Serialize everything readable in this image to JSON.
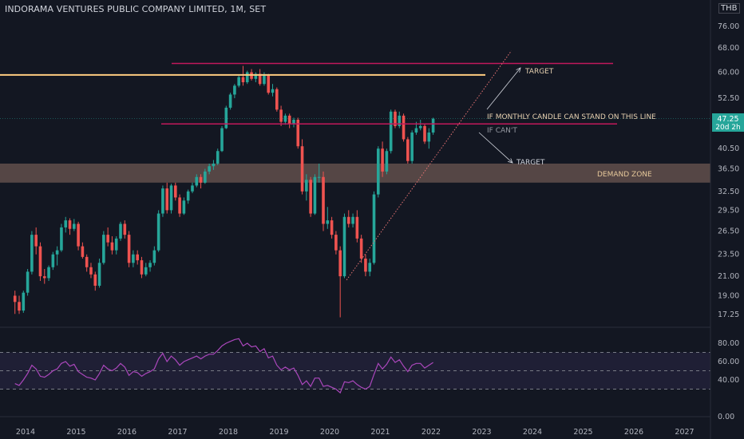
{
  "header": {
    "title": "INDORAMA VENTURES PUBLIC COMPANY LIMITED, 1M, SET",
    "currency": "THB"
  },
  "price_badge": {
    "price": "47.25",
    "countdown": "20d 2h"
  },
  "annotations": {
    "target_top": "TARGET",
    "condition": "IF MONTHLY CANDLE CAN STAND ON THIS LINE",
    "if_cant": "IF CAN'T",
    "target_bottom": "TARGET",
    "demand_zone": "DEMAND ZONE"
  },
  "colors": {
    "background": "#131722",
    "up": "#26a69a",
    "down": "#ef5350",
    "resistance_line": "#c2185b",
    "peak_line": "#ffcc80",
    "demand_zone": "#8d6e63",
    "rsi_line": "#ab47bc",
    "rsi_band": "#7e57c2"
  },
  "chart_data": {
    "type": "candlestick",
    "price_axis_ticks": [
      "76.00",
      "68.00",
      "60.00",
      "52.50",
      "47.25",
      "40.50",
      "36.50",
      "32.50",
      "29.50",
      "26.50",
      "23.50",
      "21.00",
      "19.00",
      "17.25"
    ],
    "rsi_axis_ticks": [
      "80.00",
      "60.00",
      "40.00",
      "0.00"
    ],
    "x_ticks": [
      "2014",
      "2015",
      "2016",
      "2017",
      "2018",
      "2019",
      "2020",
      "2021",
      "2022",
      "2023",
      "2024",
      "2025",
      "2026",
      "2027"
    ],
    "horizontal_lines": [
      {
        "name": "target",
        "price": 62.8
      },
      {
        "name": "peak",
        "price": 59.2
      },
      {
        "name": "breakout",
        "price": 46.0
      }
    ],
    "demand_zone": [
      34.0,
      37.5
    ],
    "trendline": {
      "from": {
        "date": "2020-05",
        "price": 20.6
      },
      "to": {
        "date": "2023-08",
        "price": 67.0
      }
    },
    "rsi_levels": [
      70,
      50,
      30
    ],
    "ohlc": [
      [
        "2013-10",
        19.0,
        19.5,
        17.3,
        18.4
      ],
      [
        "2013-11",
        18.4,
        19.0,
        17.3,
        17.6
      ],
      [
        "2013-12",
        17.6,
        19.5,
        17.4,
        19.3
      ],
      [
        "2014-01",
        19.3,
        21.8,
        19.0,
        21.5
      ],
      [
        "2014-02",
        21.5,
        26.5,
        21.2,
        26.0
      ],
      [
        "2014-03",
        26.0,
        27.0,
        23.5,
        24.5
      ],
      [
        "2014-04",
        24.5,
        25.0,
        20.5,
        21.0
      ],
      [
        "2014-05",
        21.0,
        21.8,
        20.2,
        20.8
      ],
      [
        "2014-06",
        20.8,
        22.2,
        20.5,
        22.0
      ],
      [
        "2014-07",
        22.0,
        23.8,
        21.7,
        23.5
      ],
      [
        "2014-08",
        23.5,
        24.5,
        22.2,
        24.0
      ],
      [
        "2014-09",
        24.0,
        27.5,
        23.8,
        27.0
      ],
      [
        "2014-10",
        27.0,
        28.5,
        26.3,
        28.0
      ],
      [
        "2014-11",
        28.0,
        28.3,
        26.0,
        26.8
      ],
      [
        "2014-12",
        26.8,
        28.2,
        26.5,
        27.5
      ],
      [
        "2015-01",
        27.5,
        27.8,
        24.0,
        24.5
      ],
      [
        "2015-02",
        24.5,
        25.0,
        23.0,
        23.2
      ],
      [
        "2015-03",
        23.2,
        23.5,
        21.5,
        22.0
      ],
      [
        "2015-04",
        22.0,
        22.5,
        20.8,
        21.2
      ],
      [
        "2015-05",
        21.2,
        21.5,
        19.5,
        20.0
      ],
      [
        "2015-06",
        20.0,
        23.0,
        19.8,
        22.5
      ],
      [
        "2015-07",
        22.5,
        26.5,
        22.3,
        26.0
      ],
      [
        "2015-08",
        26.0,
        27.0,
        24.5,
        25.0
      ],
      [
        "2015-09",
        25.0,
        25.8,
        23.5,
        24.0
      ],
      [
        "2015-10",
        24.0,
        25.8,
        23.5,
        25.5
      ],
      [
        "2015-11",
        25.5,
        27.8,
        25.2,
        27.5
      ],
      [
        "2015-12",
        27.5,
        28.0,
        25.5,
        26.0
      ],
      [
        "2016-01",
        26.0,
        26.5,
        22.0,
        22.5
      ],
      [
        "2016-02",
        22.5,
        24.0,
        22.0,
        23.5
      ],
      [
        "2016-03",
        23.5,
        24.0,
        22.3,
        22.8
      ],
      [
        "2016-04",
        22.8,
        23.2,
        20.8,
        21.2
      ],
      [
        "2016-05",
        21.2,
        22.5,
        21.0,
        22.0
      ],
      [
        "2016-06",
        22.0,
        22.8,
        21.5,
        22.5
      ],
      [
        "2016-07",
        22.5,
        24.5,
        22.2,
        24.0
      ],
      [
        "2016-08",
        24.0,
        29.5,
        23.8,
        29.0
      ],
      [
        "2016-09",
        29.0,
        33.5,
        28.5,
        33.0
      ],
      [
        "2016-10",
        33.0,
        34.0,
        29.0,
        29.5
      ],
      [
        "2016-11",
        29.5,
        33.8,
        29.0,
        33.5
      ],
      [
        "2016-12",
        33.5,
        34.0,
        31.0,
        31.5
      ],
      [
        "2017-01",
        31.5,
        32.0,
        28.5,
        29.0
      ],
      [
        "2017-02",
        29.0,
        31.5,
        28.8,
        31.0
      ],
      [
        "2017-03",
        31.0,
        32.8,
        30.5,
        32.5
      ],
      [
        "2017-04",
        32.5,
        34.0,
        32.2,
        33.5
      ],
      [
        "2017-05",
        33.5,
        35.5,
        33.2,
        35.0
      ],
      [
        "2017-06",
        35.0,
        35.5,
        33.0,
        34.0
      ],
      [
        "2017-07",
        34.0,
        36.5,
        33.8,
        36.0
      ],
      [
        "2017-08",
        36.0,
        37.5,
        35.5,
        37.0
      ],
      [
        "2017-09",
        37.0,
        38.2,
        36.3,
        37.5
      ],
      [
        "2017-10",
        37.5,
        40.5,
        37.2,
        40.0
      ],
      [
        "2017-11",
        40.0,
        45.5,
        39.8,
        45.0
      ],
      [
        "2017-12",
        45.0,
        50.5,
        44.8,
        50.0
      ],
      [
        "2018-01",
        50.0,
        54.0,
        49.5,
        53.5
      ],
      [
        "2018-02",
        53.5,
        56.5,
        52.5,
        56.0
      ],
      [
        "2018-03",
        56.0,
        59.0,
        55.5,
        58.5
      ],
      [
        "2018-04",
        58.5,
        62.0,
        56.0,
        57.0
      ],
      [
        "2018-05",
        57.0,
        60.5,
        56.5,
        60.0
      ],
      [
        "2018-06",
        60.0,
        61.0,
        57.5,
        58.0
      ],
      [
        "2018-07",
        58.0,
        60.0,
        57.0,
        59.5
      ],
      [
        "2018-08",
        59.5,
        61.0,
        56.0,
        56.5
      ],
      [
        "2018-09",
        56.5,
        60.0,
        56.0,
        59.0
      ],
      [
        "2018-10",
        59.0,
        59.5,
        53.5,
        54.0
      ],
      [
        "2018-11",
        54.0,
        56.5,
        53.0,
        55.0
      ],
      [
        "2018-12",
        55.0,
        55.5,
        49.0,
        49.5
      ],
      [
        "2019-01",
        49.5,
        50.5,
        45.5,
        46.5
      ],
      [
        "2019-02",
        46.5,
        48.5,
        45.8,
        48.0
      ],
      [
        "2019-03",
        48.0,
        48.5,
        45.0,
        46.0
      ],
      [
        "2019-04",
        46.0,
        47.5,
        45.2,
        47.0
      ],
      [
        "2019-05",
        47.0,
        47.5,
        40.5,
        41.0
      ],
      [
        "2019-06",
        41.0,
        42.5,
        32.0,
        32.5
      ],
      [
        "2019-07",
        32.5,
        35.5,
        31.0,
        34.5
      ],
      [
        "2019-08",
        34.5,
        35.0,
        28.5,
        29.0
      ],
      [
        "2019-09",
        29.0,
        35.5,
        28.8,
        35.0
      ],
      [
        "2019-10",
        35.0,
        37.5,
        34.0,
        35.0
      ],
      [
        "2019-11",
        35.0,
        36.0,
        26.5,
        27.5
      ],
      [
        "2019-12",
        27.5,
        30.0,
        26.8,
        28.0
      ],
      [
        "2020-01",
        28.0,
        28.5,
        25.5,
        26.0
      ],
      [
        "2020-02",
        26.0,
        26.5,
        23.5,
        24.0
      ],
      [
        "2020-03",
        24.0,
        24.5,
        17.0,
        21.0
      ],
      [
        "2020-04",
        21.0,
        29.0,
        20.8,
        28.5
      ],
      [
        "2020-05",
        28.5,
        29.5,
        27.0,
        27.5
      ],
      [
        "2020-06",
        27.5,
        29.0,
        27.0,
        28.5
      ],
      [
        "2020-07",
        28.5,
        29.5,
        25.0,
        25.5
      ],
      [
        "2020-08",
        25.5,
        26.0,
        22.5,
        23.0
      ],
      [
        "2020-09",
        23.0,
        23.5,
        21.0,
        21.5
      ],
      [
        "2020-10",
        21.5,
        23.0,
        21.0,
        22.5
      ],
      [
        "2020-11",
        22.5,
        32.5,
        22.3,
        32.0
      ],
      [
        "2020-12",
        32.0,
        41.0,
        31.5,
        40.5
      ],
      [
        "2021-01",
        40.5,
        42.0,
        35.0,
        36.0
      ],
      [
        "2021-02",
        36.0,
        40.5,
        35.5,
        40.0
      ],
      [
        "2021-03",
        40.0,
        49.5,
        39.5,
        49.0
      ],
      [
        "2021-04",
        49.0,
        49.5,
        45.0,
        45.5
      ],
      [
        "2021-05",
        45.5,
        49.0,
        45.0,
        48.0
      ],
      [
        "2021-06",
        48.0,
        48.5,
        42.0,
        42.5
      ],
      [
        "2021-07",
        42.5,
        43.0,
        37.5,
        38.0
      ],
      [
        "2021-08",
        38.0,
        44.5,
        37.5,
        44.0
      ],
      [
        "2021-09",
        44.0,
        46.5,
        43.5,
        45.0
      ],
      [
        "2021-10",
        45.0,
        47.0,
        44.5,
        45.5
      ],
      [
        "2021-11",
        45.5,
        46.0,
        41.5,
        42.0
      ],
      [
        "2021-12",
        42.0,
        45.0,
        40.5,
        44.0
      ],
      [
        "2022-01",
        44.0,
        47.5,
        43.5,
        47.25
      ]
    ],
    "rsi": [
      [
        "2013-10",
        36
      ],
      [
        "2013-11",
        34
      ],
      [
        "2013-12",
        40
      ],
      [
        "2014-01",
        47
      ],
      [
        "2014-02",
        56
      ],
      [
        "2014-03",
        52
      ],
      [
        "2014-04",
        44
      ],
      [
        "2014-05",
        43
      ],
      [
        "2014-06",
        46
      ],
      [
        "2014-07",
        50
      ],
      [
        "2014-08",
        52
      ],
      [
        "2014-09",
        58
      ],
      [
        "2014-10",
        60
      ],
      [
        "2014-11",
        55
      ],
      [
        "2014-12",
        57
      ],
      [
        "2015-01",
        49
      ],
      [
        "2015-02",
        46
      ],
      [
        "2015-03",
        43
      ],
      [
        "2015-04",
        42
      ],
      [
        "2015-05",
        40
      ],
      [
        "2015-06",
        47
      ],
      [
        "2015-07",
        56
      ],
      [
        "2015-08",
        52
      ],
      [
        "2015-09",
        50
      ],
      [
        "2015-10",
        53
      ],
      [
        "2015-11",
        58
      ],
      [
        "2015-12",
        54
      ],
      [
        "2016-01",
        45
      ],
      [
        "2016-02",
        49
      ],
      [
        "2016-03",
        48
      ],
      [
        "2016-04",
        44
      ],
      [
        "2016-05",
        47
      ],
      [
        "2016-06",
        49
      ],
      [
        "2016-07",
        52
      ],
      [
        "2016-08",
        63
      ],
      [
        "2016-09",
        69
      ],
      [
        "2016-10",
        60
      ],
      [
        "2016-11",
        66
      ],
      [
        "2016-12",
        62
      ],
      [
        "2017-01",
        56
      ],
      [
        "2017-02",
        60
      ],
      [
        "2017-03",
        62
      ],
      [
        "2017-04",
        64
      ],
      [
        "2017-05",
        66
      ],
      [
        "2017-06",
        63
      ],
      [
        "2017-07",
        66
      ],
      [
        "2017-08",
        68
      ],
      [
        "2017-09",
        68
      ],
      [
        "2017-10",
        72
      ],
      [
        "2017-11",
        77
      ],
      [
        "2017-12",
        80
      ],
      [
        "2018-01",
        82
      ],
      [
        "2018-02",
        84
      ],
      [
        "2018-03",
        85
      ],
      [
        "2018-04",
        77
      ],
      [
        "2018-05",
        80
      ],
      [
        "2018-06",
        76
      ],
      [
        "2018-07",
        77
      ],
      [
        "2018-08",
        71
      ],
      [
        "2018-09",
        74
      ],
      [
        "2018-10",
        64
      ],
      [
        "2018-11",
        66
      ],
      [
        "2018-12",
        56
      ],
      [
        "2019-01",
        51
      ],
      [
        "2019-02",
        54
      ],
      [
        "2019-03",
        51
      ],
      [
        "2019-04",
        53
      ],
      [
        "2019-05",
        45
      ],
      [
        "2019-06",
        35
      ],
      [
        "2019-07",
        39
      ],
      [
        "2019-08",
        33
      ],
      [
        "2019-09",
        42
      ],
      [
        "2019-10",
        42
      ],
      [
        "2019-11",
        33
      ],
      [
        "2019-12",
        34
      ],
      [
        "2020-01",
        32
      ],
      [
        "2020-02",
        30
      ],
      [
        "2020-03",
        26
      ],
      [
        "2020-04",
        38
      ],
      [
        "2020-05",
        37
      ],
      [
        "2020-06",
        39
      ],
      [
        "2020-07",
        35
      ],
      [
        "2020-08",
        32
      ],
      [
        "2020-09",
        30
      ],
      [
        "2020-10",
        33
      ],
      [
        "2020-11",
        46
      ],
      [
        "2020-12",
        58
      ],
      [
        "2021-01",
        52
      ],
      [
        "2021-02",
        57
      ],
      [
        "2021-03",
        65
      ],
      [
        "2021-04",
        59
      ],
      [
        "2021-05",
        62
      ],
      [
        "2021-06",
        55
      ],
      [
        "2021-07",
        49
      ],
      [
        "2021-08",
        56
      ],
      [
        "2021-09",
        58
      ],
      [
        "2021-10",
        58
      ],
      [
        "2021-11",
        53
      ],
      [
        "2021-12",
        56
      ],
      [
        "2022-01",
        59
      ]
    ]
  }
}
